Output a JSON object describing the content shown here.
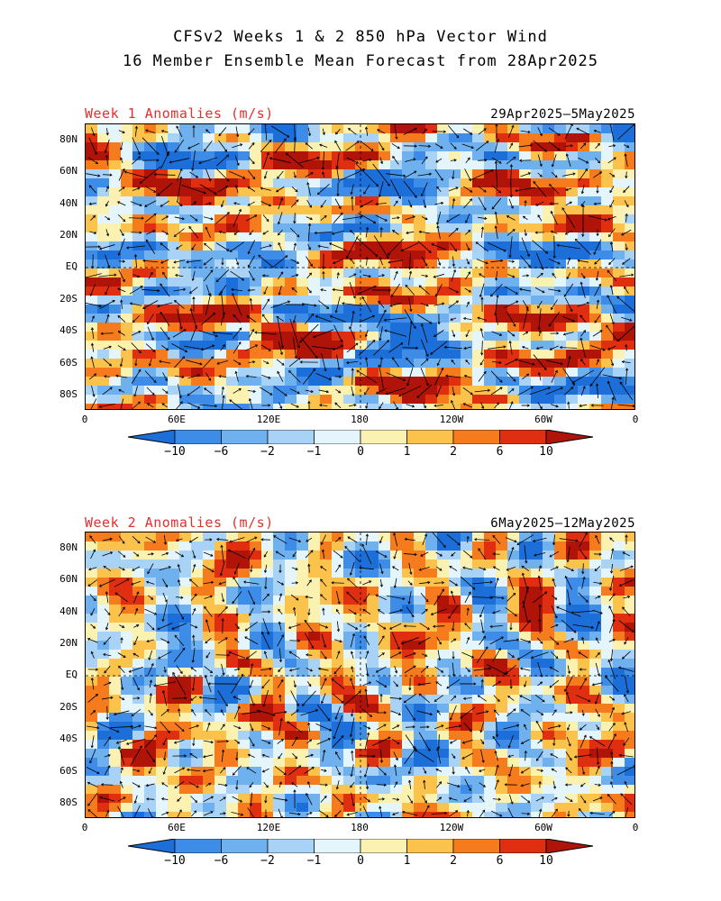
{
  "title_line1": "CFSv2 Weeks 1 & 2 850 hPa Vector Wind",
  "title_line2": "16 Member Ensemble Mean Forecast from 28Apr2025",
  "panels": [
    {
      "title": "Week 1 Anomalies (m/s)",
      "dates": "29Apr2025–5May2025"
    },
    {
      "title": "Week 2 Anomalies (m/s)",
      "dates": "6May2025–12May2025"
    }
  ],
  "y_ticks": [
    "80N",
    "60N",
    "40N",
    "20N",
    "EQ",
    "20S",
    "40S",
    "60S",
    "80S"
  ],
  "x_ticks": [
    "0",
    "60E",
    "120E",
    "180",
    "120W",
    "60W",
    "0"
  ],
  "colorbar": {
    "labels": [
      "−10",
      "−6",
      "−2",
      "−1",
      "0",
      "1",
      "2",
      "6",
      "10"
    ],
    "colors": [
      "#1c6fd8",
      "#3d8de8",
      "#6fb0ef",
      "#a9d3f6",
      "#e4f5fb",
      "#fbf1b0",
      "#fcc34c",
      "#f67b1c",
      "#e02f10",
      "#b01308"
    ]
  }
}
